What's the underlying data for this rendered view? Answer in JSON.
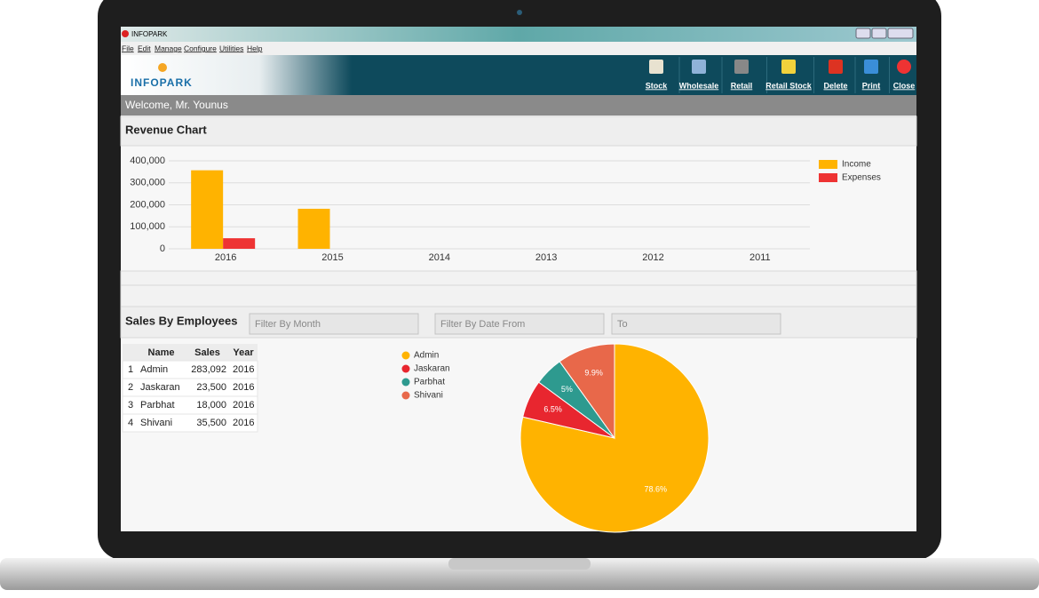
{
  "window": {
    "title": "INFOPARK"
  },
  "menu": [
    "File",
    "Edit",
    "Manage",
    "Configure",
    "Utilities",
    "Help"
  ],
  "logo": "INFOPARK",
  "toolbar": [
    "Stock",
    "Wholesale",
    "Retail",
    "Retail Stock",
    "Delete",
    "Print",
    "Close"
  ],
  "welcome": "Welcome,  Mr. Younus",
  "filters": [
    "Filter By Month",
    "Filter By Date From",
    "To"
  ],
  "table": {
    "columns": [
      "Name",
      "Sales",
      "Year"
    ],
    "rows": [
      [
        "1",
        "Admin",
        "283,092",
        "2016"
      ],
      [
        "2",
        "Jaskaran",
        "23,500",
        "2016"
      ],
      [
        "3",
        "Parbhat",
        "18,000",
        "2016"
      ],
      [
        "4",
        "Shivani",
        "35,500",
        "2016"
      ]
    ]
  },
  "chart_data": [
    {
      "type": "bar",
      "title": "Revenue Chart",
      "categories": [
        "2016",
        "2015",
        "2014",
        "2013",
        "2012",
        "2011"
      ],
      "series": [
        {
          "name": "Income",
          "color": "#ffb300",
          "values": [
            357000,
            182000,
            0,
            0,
            0,
            0
          ]
        },
        {
          "name": "Expenses",
          "color": "#ee3333",
          "values": [
            48000,
            0,
            0,
            0,
            0,
            0
          ]
        }
      ],
      "ylim": [
        0,
        400000
      ],
      "yticks": [
        0,
        {
          "value": 100000,
          "label": "100,000"
        },
        {
          "value": 200000,
          "label": "200,000"
        },
        {
          "value": 300000,
          "label": "300,000"
        },
        {
          "value": 400000,
          "label": "400,000"
        }
      ],
      "grid": true,
      "legend": "right"
    },
    {
      "type": "pie",
      "title": "Sales By Employees",
      "categories": [
        "Admin",
        "Jaskaran",
        "Parbhat",
        "Shivani"
      ],
      "values": [
        78.6,
        6.5,
        5,
        9.9
      ],
      "value_labels": [
        "78.6%",
        "6.5%",
        "5%",
        "9.9%"
      ],
      "colors": [
        "#ffb300",
        "#e8262f",
        "#2e9a8f",
        "#e8684a"
      ],
      "legend": "left"
    }
  ]
}
